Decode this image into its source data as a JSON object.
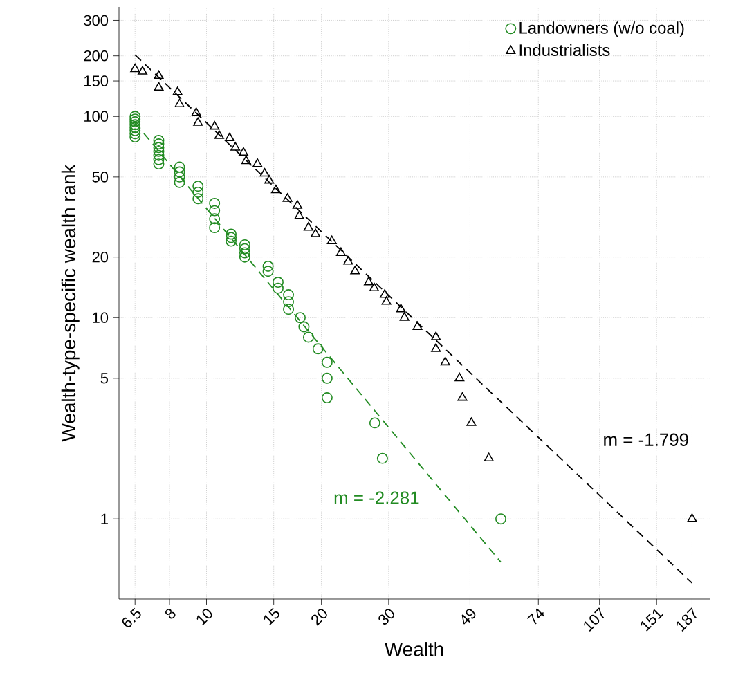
{
  "chart_data": {
    "type": "scatter",
    "xlabel": "Wealth",
    "ylabel": "Wealth-type-specific wealth rank",
    "log": "xy",
    "grid": true,
    "legend": "top right",
    "xlim": [
      5.9,
      208
    ],
    "ylim": [
      0.4,
      350
    ],
    "xticks": [
      6.5,
      8,
      10,
      15,
      20,
      30,
      49,
      74,
      107,
      151,
      187
    ],
    "yticks": [
      1,
      5,
      10,
      20,
      50,
      100,
      150,
      200,
      300
    ],
    "series": [
      {
        "name": "Landowners (w/o coal)",
        "color": "#228b22",
        "marker": "circle",
        "x": [
          6.5,
          6.5,
          6.5,
          6.5,
          6.5,
          6.5,
          6.5,
          6.5,
          7.5,
          7.5,
          7.5,
          7.5,
          7.5,
          7.5,
          7.5,
          8.5,
          8.5,
          8.5,
          8.5,
          9.5,
          9.5,
          9.5,
          10.5,
          10.5,
          10.5,
          10.5,
          11.6,
          11.6,
          11.6,
          12.6,
          12.6,
          12.6,
          12.6,
          14.5,
          14.5,
          15.4,
          15.4,
          16.4,
          16.4,
          16.4,
          17.6,
          18,
          18.5,
          19.6,
          20.7,
          20.7,
          20.7,
          27.6,
          28.9,
          59
        ],
        "values": [
          100,
          97,
          94,
          91,
          88,
          85,
          82,
          79,
          76,
          73,
          70,
          67,
          64,
          61,
          58,
          56,
          53,
          50,
          47,
          45,
          42,
          39,
          37,
          34,
          31,
          28,
          26,
          25,
          24,
          23,
          22,
          21,
          20,
          18,
          17,
          15,
          14,
          13,
          12,
          11,
          10,
          9,
          8,
          7,
          6,
          5,
          4,
          3,
          2,
          1
        ]
      },
      {
        "name": "Industrialists",
        "color": "#000000",
        "marker": "triangle",
        "x": [
          6.5,
          6.8,
          7.5,
          7.5,
          8.4,
          8.5,
          9.4,
          9.5,
          10.5,
          10.8,
          11.5,
          11.9,
          12.5,
          12.7,
          13.6,
          14.2,
          14.6,
          15.2,
          16.3,
          17.3,
          17.5,
          18.5,
          19.3,
          21.3,
          22.5,
          23.5,
          24.5,
          26.6,
          27.5,
          29.3,
          29.6,
          32.3,
          33,
          35.7,
          39.9,
          39.9,
          42.2,
          46,
          46.8,
          49.4,
          54.9,
          187
        ],
        "values": [
          172,
          167,
          159,
          139,
          132,
          115,
          104,
          93,
          89,
          80,
          78,
          70,
          66,
          60,
          58,
          52,
          48,
          43,
          39,
          36,
          32,
          28,
          26,
          24,
          21,
          19,
          17,
          15,
          14,
          13,
          12,
          11,
          10,
          9,
          8,
          7,
          6,
          5,
          4,
          3,
          2,
          1
        ]
      },
      {
        "type": "line",
        "color": "#228b22",
        "line_style": "dashed",
        "marker": "none",
        "x": [
          6.5,
          59
        ],
        "values": [
          93,
          0.61
        ]
      },
      {
        "type": "line",
        "color": "#000000",
        "line_style": "dashed",
        "marker": "none",
        "x": [
          6.5,
          187
        ],
        "values": [
          202,
          0.48
        ]
      }
    ],
    "annotations": [
      "m = -2.281",
      "m = -1.799"
    ]
  }
}
